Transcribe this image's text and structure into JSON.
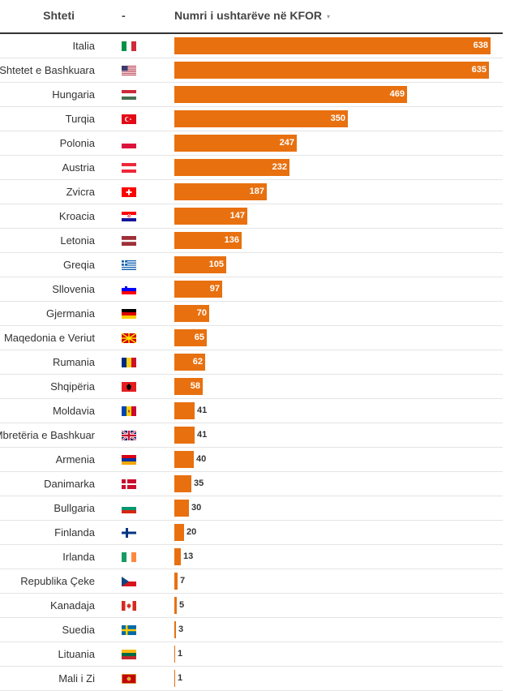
{
  "table": {
    "col_country": "Shteti",
    "col_flag": "-",
    "col_value": "Numri i ushtarëve në KFOR",
    "sort_icon": "▾"
  },
  "colors": {
    "bar": "#e8700f"
  },
  "chart_data": {
    "type": "bar",
    "orientation": "horizontal",
    "xlabel": "Numri i ushtarëve në KFOR",
    "categories": [
      "Italia",
      "Shtetet e Bashkuara",
      "Hungaria",
      "Turqia",
      "Polonia",
      "Austria",
      "Zvicra",
      "Kroacia",
      "Letonia",
      "Greqia",
      "Sllovenia",
      "Gjermania",
      "Maqedonia e Veriut",
      "Rumania",
      "Shqipëria",
      "Moldavia",
      "Mbretëria e Bashkuar",
      "Armenia",
      "Danimarka",
      "Bullgaria",
      "Finlanda",
      "Irlanda",
      "Republika Çeke",
      "Kanadaja",
      "Suedia",
      "Lituania",
      "Mali i Zi"
    ],
    "flags": [
      "it-flag-icon",
      "us-flag-icon",
      "hu-flag-icon",
      "tr-flag-icon",
      "pl-flag-icon",
      "at-flag-icon",
      "ch-flag-icon",
      "hr-flag-icon",
      "lv-flag-icon",
      "gr-flag-icon",
      "si-flag-icon",
      "de-flag-icon",
      "mk-flag-icon",
      "ro-flag-icon",
      "al-flag-icon",
      "md-flag-icon",
      "gb-flag-icon",
      "am-flag-icon",
      "dk-flag-icon",
      "bg-flag-icon",
      "fi-flag-icon",
      "ie-flag-icon",
      "cz-flag-icon",
      "ca-flag-icon",
      "se-flag-icon",
      "lt-flag-icon",
      "me-flag-icon"
    ],
    "values": [
      638,
      635,
      469,
      350,
      247,
      232,
      187,
      147,
      136,
      105,
      97,
      70,
      65,
      62,
      58,
      41,
      41,
      40,
      35,
      30,
      20,
      13,
      7,
      5,
      3,
      1,
      1
    ],
    "xlim": [
      0,
      638
    ]
  }
}
